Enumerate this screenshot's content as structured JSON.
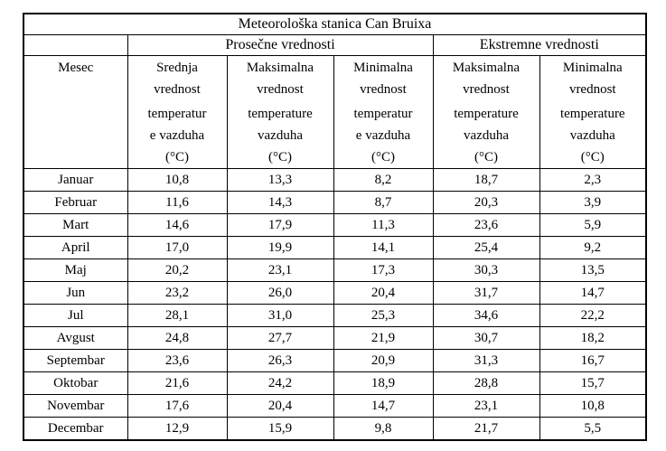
{
  "table": {
    "title": "Meteorološka stanica Can Bruixa",
    "groups": {
      "average": "Prosečne vrednosti",
      "extreme": "Ekstremne vrednosti"
    },
    "columns": [
      {
        "id": "month",
        "part1": "Mesec",
        "part2": ""
      },
      {
        "id": "avg-mean",
        "part1": "Srednja\nvrednost",
        "part2": "temperatur\ne vazduha\n(°C)"
      },
      {
        "id": "avg-max",
        "part1": "Maksimalna\nvrednost",
        "part2": "temperature\nvazduha\n(°C)"
      },
      {
        "id": "avg-min",
        "part1": "Minimalna\nvrednost",
        "part2": "temperatur\ne vazduha\n(°C)"
      },
      {
        "id": "ext-max",
        "part1": "Maksimalna\nvrednost",
        "part2": "temperature\nvazduha\n(°C)"
      },
      {
        "id": "ext-min",
        "part1": "Minimalna\nvrednost",
        "part2": "temperature\nvazduha\n(°C)"
      }
    ],
    "rows": [
      {
        "month": "Januar",
        "values": [
          "10,8",
          "13,3",
          "8,2",
          "18,7",
          "2,3"
        ]
      },
      {
        "month": "Februar",
        "values": [
          "11,6",
          "14,3",
          "8,7",
          "20,3",
          "3,9"
        ]
      },
      {
        "month": "Mart",
        "values": [
          "14,6",
          "17,9",
          "11,3",
          "23,6",
          "5,9"
        ]
      },
      {
        "month": "April",
        "values": [
          "17,0",
          "19,9",
          "14,1",
          "25,4",
          "9,2"
        ]
      },
      {
        "month": "Maj",
        "values": [
          "20,2",
          "23,1",
          "17,3",
          "30,3",
          "13,5"
        ]
      },
      {
        "month": "Jun",
        "values": [
          "23,2",
          "26,0",
          "20,4",
          "31,7",
          "14,7"
        ]
      },
      {
        "month": "Jul",
        "values": [
          "28,1",
          "31,0",
          "25,3",
          "34,6",
          "22,2"
        ]
      },
      {
        "month": "Avgust",
        "values": [
          "24,8",
          "27,7",
          "21,9",
          "30,7",
          "18,2"
        ]
      },
      {
        "month": "Septembar",
        "values": [
          "23,6",
          "26,3",
          "20,9",
          "31,3",
          "16,7"
        ]
      },
      {
        "month": "Oktobar",
        "values": [
          "21,6",
          "24,2",
          "18,9",
          "28,8",
          "15,7"
        ]
      },
      {
        "month": "Novembar",
        "values": [
          "17,6",
          "20,4",
          "14,7",
          "23,1",
          "10,8"
        ]
      },
      {
        "month": "Decembar",
        "values": [
          "12,9",
          "15,9",
          "9,8",
          "21,7",
          "5,5"
        ]
      }
    ]
  }
}
